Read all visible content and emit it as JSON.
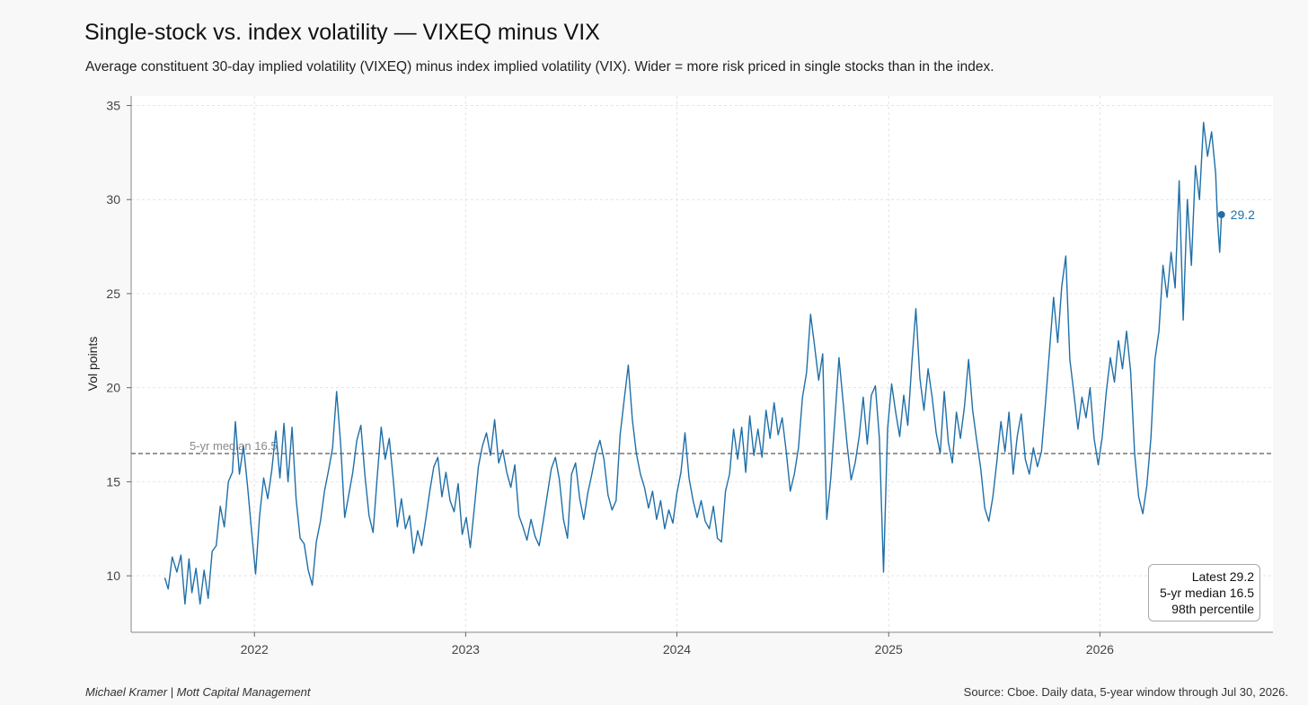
{
  "header": {
    "title": "Single-stock vs. index volatility — VIXEQ minus VIX",
    "subtitle": "Average constituent 30-day implied volatility (VIXEQ) minus index implied volatility (VIX). Wider = more risk priced in single stocks than in the index."
  },
  "chart_data": {
    "type": "line",
    "title": "Single-stock vs. index volatility — VIXEQ minus VIX",
    "ylabel": "Vol points",
    "xlabel": "",
    "ylim": [
      7,
      35.5
    ],
    "xlim": [
      "2021-06-02",
      "2026-10-27"
    ],
    "x_ticks": [
      "2022",
      "2023",
      "2024",
      "2025",
      "2026"
    ],
    "y_ticks": [
      10,
      15,
      20,
      25,
      30,
      35
    ],
    "grid": true,
    "series": [
      {
        "color": "#1f6fa8",
        "points": [
          [
            "2021-07-30",
            9.9
          ],
          [
            "2021-08-05",
            9.3
          ],
          [
            "2021-08-12",
            11.0
          ],
          [
            "2021-08-20",
            10.2
          ],
          [
            "2021-08-27",
            11.1
          ],
          [
            "2021-09-03",
            8.5
          ],
          [
            "2021-09-10",
            10.9
          ],
          [
            "2021-09-15",
            9.1
          ],
          [
            "2021-09-22",
            10.4
          ],
          [
            "2021-09-29",
            8.5
          ],
          [
            "2021-10-06",
            10.3
          ],
          [
            "2021-10-13",
            8.8
          ],
          [
            "2021-10-20",
            11.3
          ],
          [
            "2021-10-27",
            11.6
          ],
          [
            "2021-11-03",
            13.7
          ],
          [
            "2021-11-10",
            12.6
          ],
          [
            "2021-11-17",
            15.0
          ],
          [
            "2021-11-24",
            15.5
          ],
          [
            "2021-11-29",
            18.2
          ],
          [
            "2021-12-06",
            15.4
          ],
          [
            "2021-12-13",
            16.9
          ],
          [
            "2021-12-20",
            14.8
          ],
          [
            "2021-12-27",
            12.4
          ],
          [
            "2022-01-03",
            10.1
          ],
          [
            "2022-01-10",
            13.2
          ],
          [
            "2022-01-17",
            15.2
          ],
          [
            "2022-01-24",
            14.1
          ],
          [
            "2022-01-31",
            15.6
          ],
          [
            "2022-02-07",
            17.7
          ],
          [
            "2022-02-14",
            15.2
          ],
          [
            "2022-02-21",
            18.1
          ],
          [
            "2022-02-28",
            15.0
          ],
          [
            "2022-03-07",
            17.9
          ],
          [
            "2022-03-14",
            14.1
          ],
          [
            "2022-03-21",
            12.0
          ],
          [
            "2022-03-28",
            11.7
          ],
          [
            "2022-04-04",
            10.3
          ],
          [
            "2022-04-11",
            9.5
          ],
          [
            "2022-04-18",
            11.8
          ],
          [
            "2022-04-25",
            12.9
          ],
          [
            "2022-05-02",
            14.5
          ],
          [
            "2022-05-09",
            15.6
          ],
          [
            "2022-05-16",
            16.8
          ],
          [
            "2022-05-23",
            19.8
          ],
          [
            "2022-05-30",
            17.0
          ],
          [
            "2022-06-06",
            13.1
          ],
          [
            "2022-06-13",
            14.3
          ],
          [
            "2022-06-20",
            15.5
          ],
          [
            "2022-06-27",
            17.2
          ],
          [
            "2022-07-04",
            18.0
          ],
          [
            "2022-07-11",
            15.3
          ],
          [
            "2022-07-18",
            13.2
          ],
          [
            "2022-07-25",
            12.3
          ],
          [
            "2022-08-01",
            15.2
          ],
          [
            "2022-08-08",
            17.9
          ],
          [
            "2022-08-15",
            16.2
          ],
          [
            "2022-08-22",
            17.3
          ],
          [
            "2022-08-29",
            15.1
          ],
          [
            "2022-09-05",
            12.6
          ],
          [
            "2022-09-12",
            14.1
          ],
          [
            "2022-09-19",
            12.5
          ],
          [
            "2022-09-26",
            13.2
          ],
          [
            "2022-10-03",
            11.2
          ],
          [
            "2022-10-10",
            12.4
          ],
          [
            "2022-10-17",
            11.6
          ],
          [
            "2022-10-24",
            13.0
          ],
          [
            "2022-10-31",
            14.5
          ],
          [
            "2022-11-07",
            15.8
          ],
          [
            "2022-11-14",
            16.3
          ],
          [
            "2022-11-21",
            14.2
          ],
          [
            "2022-11-28",
            15.5
          ],
          [
            "2022-12-05",
            14.0
          ],
          [
            "2022-12-12",
            13.4
          ],
          [
            "2022-12-19",
            14.9
          ],
          [
            "2022-12-26",
            12.2
          ],
          [
            "2023-01-02",
            13.1
          ],
          [
            "2023-01-09",
            11.5
          ],
          [
            "2023-01-16",
            13.6
          ],
          [
            "2023-01-23",
            15.8
          ],
          [
            "2023-01-30",
            16.9
          ],
          [
            "2023-02-06",
            17.6
          ],
          [
            "2023-02-13",
            16.4
          ],
          [
            "2023-02-20",
            18.3
          ],
          [
            "2023-02-27",
            16.0
          ],
          [
            "2023-03-06",
            16.7
          ],
          [
            "2023-03-13",
            15.5
          ],
          [
            "2023-03-20",
            14.7
          ],
          [
            "2023-03-27",
            15.9
          ],
          [
            "2023-04-03",
            13.2
          ],
          [
            "2023-04-10",
            12.6
          ],
          [
            "2023-04-17",
            11.9
          ],
          [
            "2023-04-24",
            13.0
          ],
          [
            "2023-05-01",
            12.1
          ],
          [
            "2023-05-08",
            11.6
          ],
          [
            "2023-05-15",
            12.9
          ],
          [
            "2023-05-22",
            14.3
          ],
          [
            "2023-05-29",
            15.7
          ],
          [
            "2023-06-05",
            16.3
          ],
          [
            "2023-06-12",
            15.1
          ],
          [
            "2023-06-19",
            13.0
          ],
          [
            "2023-06-26",
            12.0
          ],
          [
            "2023-07-03",
            15.4
          ],
          [
            "2023-07-10",
            16.0
          ],
          [
            "2023-07-17",
            14.1
          ],
          [
            "2023-07-24",
            13.0
          ],
          [
            "2023-07-31",
            14.4
          ],
          [
            "2023-08-07",
            15.4
          ],
          [
            "2023-08-14",
            16.5
          ],
          [
            "2023-08-21",
            17.2
          ],
          [
            "2023-08-28",
            16.2
          ],
          [
            "2023-09-04",
            14.3
          ],
          [
            "2023-09-11",
            13.5
          ],
          [
            "2023-09-18",
            14.0
          ],
          [
            "2023-09-25",
            17.5
          ],
          [
            "2023-10-02",
            19.4
          ],
          [
            "2023-10-09",
            21.2
          ],
          [
            "2023-10-16",
            18.3
          ],
          [
            "2023-10-23",
            16.5
          ],
          [
            "2023-10-30",
            15.4
          ],
          [
            "2023-11-06",
            14.7
          ],
          [
            "2023-11-13",
            13.6
          ],
          [
            "2023-11-20",
            14.5
          ],
          [
            "2023-11-27",
            13.0
          ],
          [
            "2023-12-04",
            14.0
          ],
          [
            "2023-12-11",
            12.5
          ],
          [
            "2023-12-18",
            13.5
          ],
          [
            "2023-12-25",
            12.8
          ],
          [
            "2024-01-01",
            14.4
          ],
          [
            "2024-01-08",
            15.5
          ],
          [
            "2024-01-15",
            17.6
          ],
          [
            "2024-01-22",
            15.2
          ],
          [
            "2024-01-29",
            14.0
          ],
          [
            "2024-02-05",
            13.1
          ],
          [
            "2024-02-12",
            14.0
          ],
          [
            "2024-02-19",
            12.9
          ],
          [
            "2024-02-26",
            12.5
          ],
          [
            "2024-03-04",
            13.7
          ],
          [
            "2024-03-11",
            12.0
          ],
          [
            "2024-03-18",
            11.8
          ],
          [
            "2024-03-25",
            14.5
          ],
          [
            "2024-04-01",
            15.4
          ],
          [
            "2024-04-08",
            17.8
          ],
          [
            "2024-04-15",
            16.2
          ],
          [
            "2024-04-22",
            17.9
          ],
          [
            "2024-04-29",
            15.5
          ],
          [
            "2024-05-06",
            18.5
          ],
          [
            "2024-05-13",
            16.4
          ],
          [
            "2024-05-20",
            17.8
          ],
          [
            "2024-05-27",
            16.3
          ],
          [
            "2024-06-03",
            18.8
          ],
          [
            "2024-06-10",
            17.3
          ],
          [
            "2024-06-17",
            19.2
          ],
          [
            "2024-06-24",
            17.5
          ],
          [
            "2024-07-01",
            18.4
          ],
          [
            "2024-07-08",
            16.6
          ],
          [
            "2024-07-15",
            14.5
          ],
          [
            "2024-07-22",
            15.4
          ],
          [
            "2024-07-29",
            16.8
          ],
          [
            "2024-08-05",
            19.5
          ],
          [
            "2024-08-12",
            20.8
          ],
          [
            "2024-08-19",
            23.9
          ],
          [
            "2024-08-26",
            22.2
          ],
          [
            "2024-09-02",
            20.4
          ],
          [
            "2024-09-09",
            21.8
          ],
          [
            "2024-09-16",
            13.0
          ],
          [
            "2024-09-23",
            15.2
          ],
          [
            "2024-09-30",
            18.3
          ],
          [
            "2024-10-07",
            21.6
          ],
          [
            "2024-10-14",
            19.3
          ],
          [
            "2024-10-21",
            17.0
          ],
          [
            "2024-10-28",
            15.1
          ],
          [
            "2024-11-04",
            16.0
          ],
          [
            "2024-11-11",
            17.4
          ],
          [
            "2024-11-18",
            19.5
          ],
          [
            "2024-11-25",
            17.0
          ],
          [
            "2024-12-02",
            19.6
          ],
          [
            "2024-12-09",
            20.1
          ],
          [
            "2024-12-16",
            17.3
          ],
          [
            "2024-12-23",
            10.2
          ],
          [
            "2024-12-30",
            17.8
          ],
          [
            "2025-01-06",
            20.2
          ],
          [
            "2025-01-13",
            18.7
          ],
          [
            "2025-01-20",
            17.4
          ],
          [
            "2025-01-27",
            19.6
          ],
          [
            "2025-02-03",
            18.0
          ],
          [
            "2025-02-10",
            21.3
          ],
          [
            "2025-02-17",
            24.2
          ],
          [
            "2025-02-24",
            20.5
          ],
          [
            "2025-03-03",
            18.8
          ],
          [
            "2025-03-10",
            21.0
          ],
          [
            "2025-03-17",
            19.5
          ],
          [
            "2025-03-24",
            17.6
          ],
          [
            "2025-03-31",
            16.5
          ],
          [
            "2025-04-07",
            19.8
          ],
          [
            "2025-04-14",
            17.1
          ],
          [
            "2025-04-21",
            16.0
          ],
          [
            "2025-04-28",
            18.7
          ],
          [
            "2025-05-05",
            17.3
          ],
          [
            "2025-05-12",
            19.0
          ],
          [
            "2025-05-19",
            21.5
          ],
          [
            "2025-05-26",
            18.8
          ],
          [
            "2025-06-02",
            17.2
          ],
          [
            "2025-06-09",
            15.7
          ],
          [
            "2025-06-16",
            13.6
          ],
          [
            "2025-06-23",
            12.9
          ],
          [
            "2025-06-30",
            14.2
          ],
          [
            "2025-07-07",
            16.1
          ],
          [
            "2025-07-14",
            18.2
          ],
          [
            "2025-07-21",
            16.6
          ],
          [
            "2025-07-28",
            18.7
          ],
          [
            "2025-08-04",
            15.4
          ],
          [
            "2025-08-11",
            17.4
          ],
          [
            "2025-08-18",
            18.6
          ],
          [
            "2025-08-25",
            16.2
          ],
          [
            "2025-09-01",
            15.4
          ],
          [
            "2025-09-08",
            16.8
          ],
          [
            "2025-09-15",
            15.8
          ],
          [
            "2025-09-22",
            16.6
          ],
          [
            "2025-09-29",
            19.2
          ],
          [
            "2025-10-06",
            22.0
          ],
          [
            "2025-10-13",
            24.8
          ],
          [
            "2025-10-20",
            22.4
          ],
          [
            "2025-10-27",
            25.4
          ],
          [
            "2025-11-03",
            27.0
          ],
          [
            "2025-11-10",
            21.5
          ],
          [
            "2025-11-17",
            19.7
          ],
          [
            "2025-11-24",
            17.8
          ],
          [
            "2025-12-01",
            19.5
          ],
          [
            "2025-12-08",
            18.4
          ],
          [
            "2025-12-15",
            20.0
          ],
          [
            "2025-12-22",
            17.3
          ],
          [
            "2025-12-29",
            15.9
          ],
          [
            "2026-01-05",
            17.4
          ],
          [
            "2026-01-12",
            19.8
          ],
          [
            "2026-01-19",
            21.6
          ],
          [
            "2026-01-26",
            20.3
          ],
          [
            "2026-02-02",
            22.5
          ],
          [
            "2026-02-09",
            21.0
          ],
          [
            "2026-02-16",
            23.0
          ],
          [
            "2026-02-23",
            20.9
          ],
          [
            "2026-03-02",
            16.5
          ],
          [
            "2026-03-09",
            14.2
          ],
          [
            "2026-03-16",
            13.3
          ],
          [
            "2026-03-23",
            14.8
          ],
          [
            "2026-03-30",
            17.3
          ],
          [
            "2026-04-06",
            21.5
          ],
          [
            "2026-04-13",
            23.0
          ],
          [
            "2026-04-20",
            26.5
          ],
          [
            "2026-04-27",
            24.8
          ],
          [
            "2026-05-04",
            27.2
          ],
          [
            "2026-05-11",
            25.3
          ],
          [
            "2026-05-18",
            31.0
          ],
          [
            "2026-05-25",
            23.6
          ],
          [
            "2026-06-01",
            30.0
          ],
          [
            "2026-06-08",
            26.5
          ],
          [
            "2026-06-15",
            31.8
          ],
          [
            "2026-06-22",
            30.0
          ],
          [
            "2026-06-29",
            34.1
          ],
          [
            "2026-07-06",
            32.3
          ],
          [
            "2026-07-13",
            33.6
          ],
          [
            "2026-07-20",
            31.4
          ],
          [
            "2026-07-23",
            29.0
          ],
          [
            "2026-07-27",
            27.2
          ],
          [
            "2026-07-30",
            29.2
          ]
        ]
      }
    ],
    "reference_line": {
      "value": 16.5,
      "label": "5-yr median 16.5"
    },
    "latest_marker": {
      "date": "2026-07-30",
      "value": 29.2,
      "label": "29.2"
    },
    "annotation_box": [
      "Latest 29.2",
      "5-yr median 16.5",
      "98th percentile"
    ],
    "colors": {
      "line": "#1f6fa8",
      "median": "#777777",
      "grid": "#e4e4e4"
    }
  },
  "footer": {
    "author": "Michael Kramer  |  Mott Capital Management",
    "source": "Source: Cboe. Daily data, 5-year window through Jul 30, 2026."
  }
}
